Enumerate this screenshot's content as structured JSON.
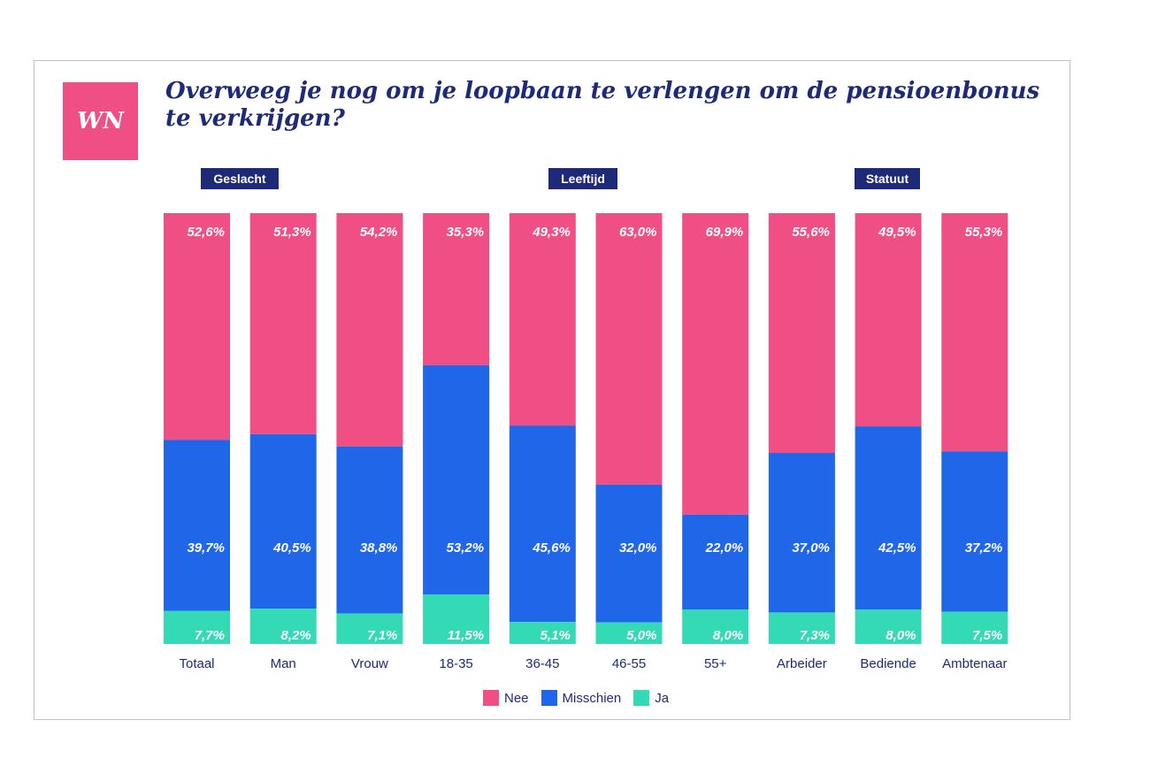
{
  "logo_text": "WN",
  "title": "Overweeg je nog om je loopbaan te verlengen om de pensioenbonus te verkrijgen?",
  "groups": {
    "gender": "Geslacht",
    "age": "Leeftijd",
    "status": "Statuut"
  },
  "colors": {
    "nee": "#f04f86",
    "misschien": "#1f67e8",
    "ja": "#34d9b5",
    "navy": "#1e2a78"
  },
  "chart_data": {
    "type": "bar",
    "stacked": true,
    "title": "Overweeg je nog om je loopbaan te verlengen om de pensioenbonus te verkrijgen?",
    "categories": [
      "Totaal",
      "Man",
      "Vrouw",
      "18-35",
      "36-45",
      "46-55",
      "55+",
      "Arbeider",
      "Bediende",
      "Ambtenaar"
    ],
    "series": [
      {
        "name": "Ja",
        "color": "#34d9b5",
        "values": [
          7.7,
          8.2,
          7.1,
          11.5,
          5.1,
          5.0,
          8.0,
          7.3,
          8.0,
          7.5
        ],
        "labels": [
          "7,7%",
          "8,2%",
          "7,1%",
          "11,5%",
          "5,1%",
          "5,0%",
          "8,0%",
          "7,3%",
          "8,0%",
          "7,5%"
        ]
      },
      {
        "name": "Misschien",
        "color": "#1f67e8",
        "values": [
          39.7,
          40.5,
          38.8,
          53.2,
          45.6,
          32.0,
          22.0,
          37.0,
          42.5,
          37.2
        ],
        "labels": [
          "39,7%",
          "40,5%",
          "38,8%",
          "53,2%",
          "45,6%",
          "32,0%",
          "22,0%",
          "37,0%",
          "42,5%",
          "37,2%"
        ]
      },
      {
        "name": "Nee",
        "color": "#f04f86",
        "values": [
          52.6,
          51.3,
          54.2,
          35.3,
          49.3,
          63.0,
          69.9,
          55.6,
          49.5,
          55.3
        ],
        "labels": [
          "52,6%",
          "51,3%",
          "54,2%",
          "35,3%",
          "49,3%",
          "63,0%",
          "69,9%",
          "55,6%",
          "49,5%",
          "55,3%"
        ]
      }
    ],
    "ylim": [
      0,
      100
    ],
    "xlabel": "",
    "ylabel": "",
    "legend": [
      "Nee",
      "Misschien",
      "Ja"
    ],
    "legend_position": "bottom-center"
  }
}
